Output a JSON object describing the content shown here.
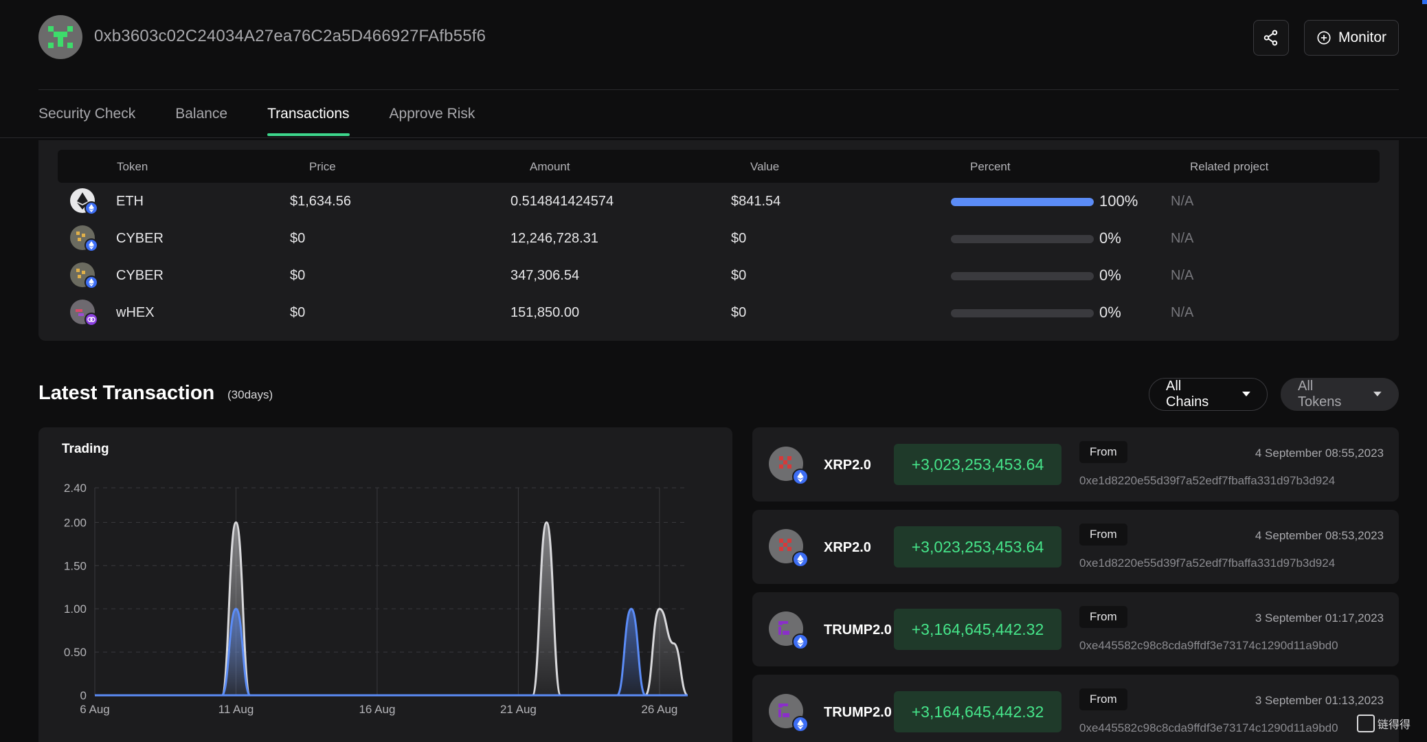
{
  "header": {
    "address": "0xb3603c02C24034A27ea76C2a5D466927FAfb55f6",
    "monitor_label": "Monitor"
  },
  "tabs": [
    {
      "label": "Security Check",
      "active": false
    },
    {
      "label": "Balance",
      "active": false
    },
    {
      "label": "Transactions",
      "active": true
    },
    {
      "label": "Approve Risk",
      "active": false
    }
  ],
  "token_table": {
    "headers": {
      "token": "Token",
      "price": "Price",
      "amount": "Amount",
      "value": "Value",
      "percent": "Percent",
      "related": "Related project"
    },
    "rows": [
      {
        "token": "ETH",
        "price": "$1,634.56",
        "amount": "0.514841424574",
        "value": "$841.54",
        "percent": "100%",
        "percent_value": 100,
        "related": "N/A"
      },
      {
        "token": "CYBER",
        "price": "$0",
        "amount": "12,246,728.31",
        "value": "$0",
        "percent": "0%",
        "percent_value": 0,
        "related": "N/A"
      },
      {
        "token": "CYBER",
        "price": "$0",
        "amount": "347,306.54",
        "value": "$0",
        "percent": "0%",
        "percent_value": 0,
        "related": "N/A"
      },
      {
        "token": "wHEX",
        "price": "$0",
        "amount": "151,850.00",
        "value": "$0",
        "percent": "0%",
        "percent_value": 0,
        "related": "N/A"
      }
    ]
  },
  "latest": {
    "title": "Latest Transaction",
    "subtitle": "(30days)",
    "chains_filter": "All Chains",
    "tokens_filter": "All Tokens"
  },
  "chart_data": {
    "type": "area",
    "title": "Trading",
    "x_ticks": [
      "6 Aug",
      "11 Aug",
      "16 Aug",
      "21 Aug",
      "26 Aug"
    ],
    "y_ticks": [
      "0",
      "0.50",
      "1.00",
      "1.50",
      "2.00",
      "2.40"
    ],
    "ylim": [
      0,
      2.4
    ],
    "xlim": [
      0,
      21
    ],
    "series": [
      {
        "name": "white",
        "color": "#d9d9dc",
        "points": [
          [
            0,
            0
          ],
          [
            4.5,
            0
          ],
          [
            5,
            2.0
          ],
          [
            5.5,
            0
          ],
          [
            15.5,
            0
          ],
          [
            16,
            2.0
          ],
          [
            16.5,
            0
          ],
          [
            19.5,
            0
          ],
          [
            20,
            1.0
          ],
          [
            20.5,
            0.6
          ],
          [
            21,
            0
          ]
        ]
      },
      {
        "name": "blue",
        "color": "#5b8cf7",
        "points": [
          [
            0,
            0
          ],
          [
            4.5,
            0
          ],
          [
            5,
            1.0
          ],
          [
            5.5,
            0
          ],
          [
            18.5,
            0
          ],
          [
            19,
            1.0
          ],
          [
            19.5,
            0
          ],
          [
            21,
            0
          ]
        ]
      }
    ]
  },
  "transactions": [
    {
      "token": "XRP2.0",
      "amount": "+3,023,253,453.64",
      "direction": "From",
      "date": "4 September 08:55,2023",
      "hash": "0xe1d8220e55d39f7a52edf7fbaffa331d97b3d924",
      "icon_color": "#c43a3a"
    },
    {
      "token": "XRP2.0",
      "amount": "+3,023,253,453.64",
      "direction": "From",
      "date": "4 September 08:53,2023",
      "hash": "0xe1d8220e55d39f7a52edf7fbaffa331d97b3d924",
      "icon_color": "#c43a3a"
    },
    {
      "token": "TRUMP2.0",
      "amount": "+3,164,645,442.32",
      "direction": "From",
      "date": "3 September 01:17,2023",
      "hash": "0xe445582c98c8cda9ffdf3e73174c1290d11a9bd0",
      "icon_color": "#8a2fc9"
    },
    {
      "token": "TRUMP2.0",
      "amount": "+3,164,645,442.32",
      "direction": "From",
      "date": "3 September 01:13,2023",
      "hash": "0xe445582c98c8cda9ffdf3e73174c1290d11a9bd0",
      "icon_color": "#8a2fc9"
    }
  ],
  "watermark": {
    "text": "链得得"
  }
}
